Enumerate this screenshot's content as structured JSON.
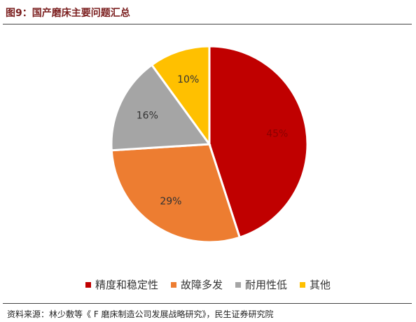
{
  "figure": {
    "title": "图9：国产磨床主要问题汇总",
    "source": "资料来源：林少敷等《 F 磨床制造公司发展战略研究》，民生证券研究院"
  },
  "chart_data": {
    "type": "pie",
    "categories": [
      "精度和稳定性",
      "故障多发",
      "耐用性低",
      "其他"
    ],
    "values": [
      45,
      29,
      16,
      10
    ],
    "labels": [
      "45%",
      "29%",
      "16%",
      "10%"
    ],
    "colors": [
      "#c00000",
      "#ed7d31",
      "#a5a5a5",
      "#ffc000"
    ],
    "label_colors": [
      "#8b0000",
      "#333333",
      "#333333",
      "#333333"
    ],
    "start_angle_deg": 0,
    "direction": "clockwise",
    "legend_position": "bottom"
  }
}
